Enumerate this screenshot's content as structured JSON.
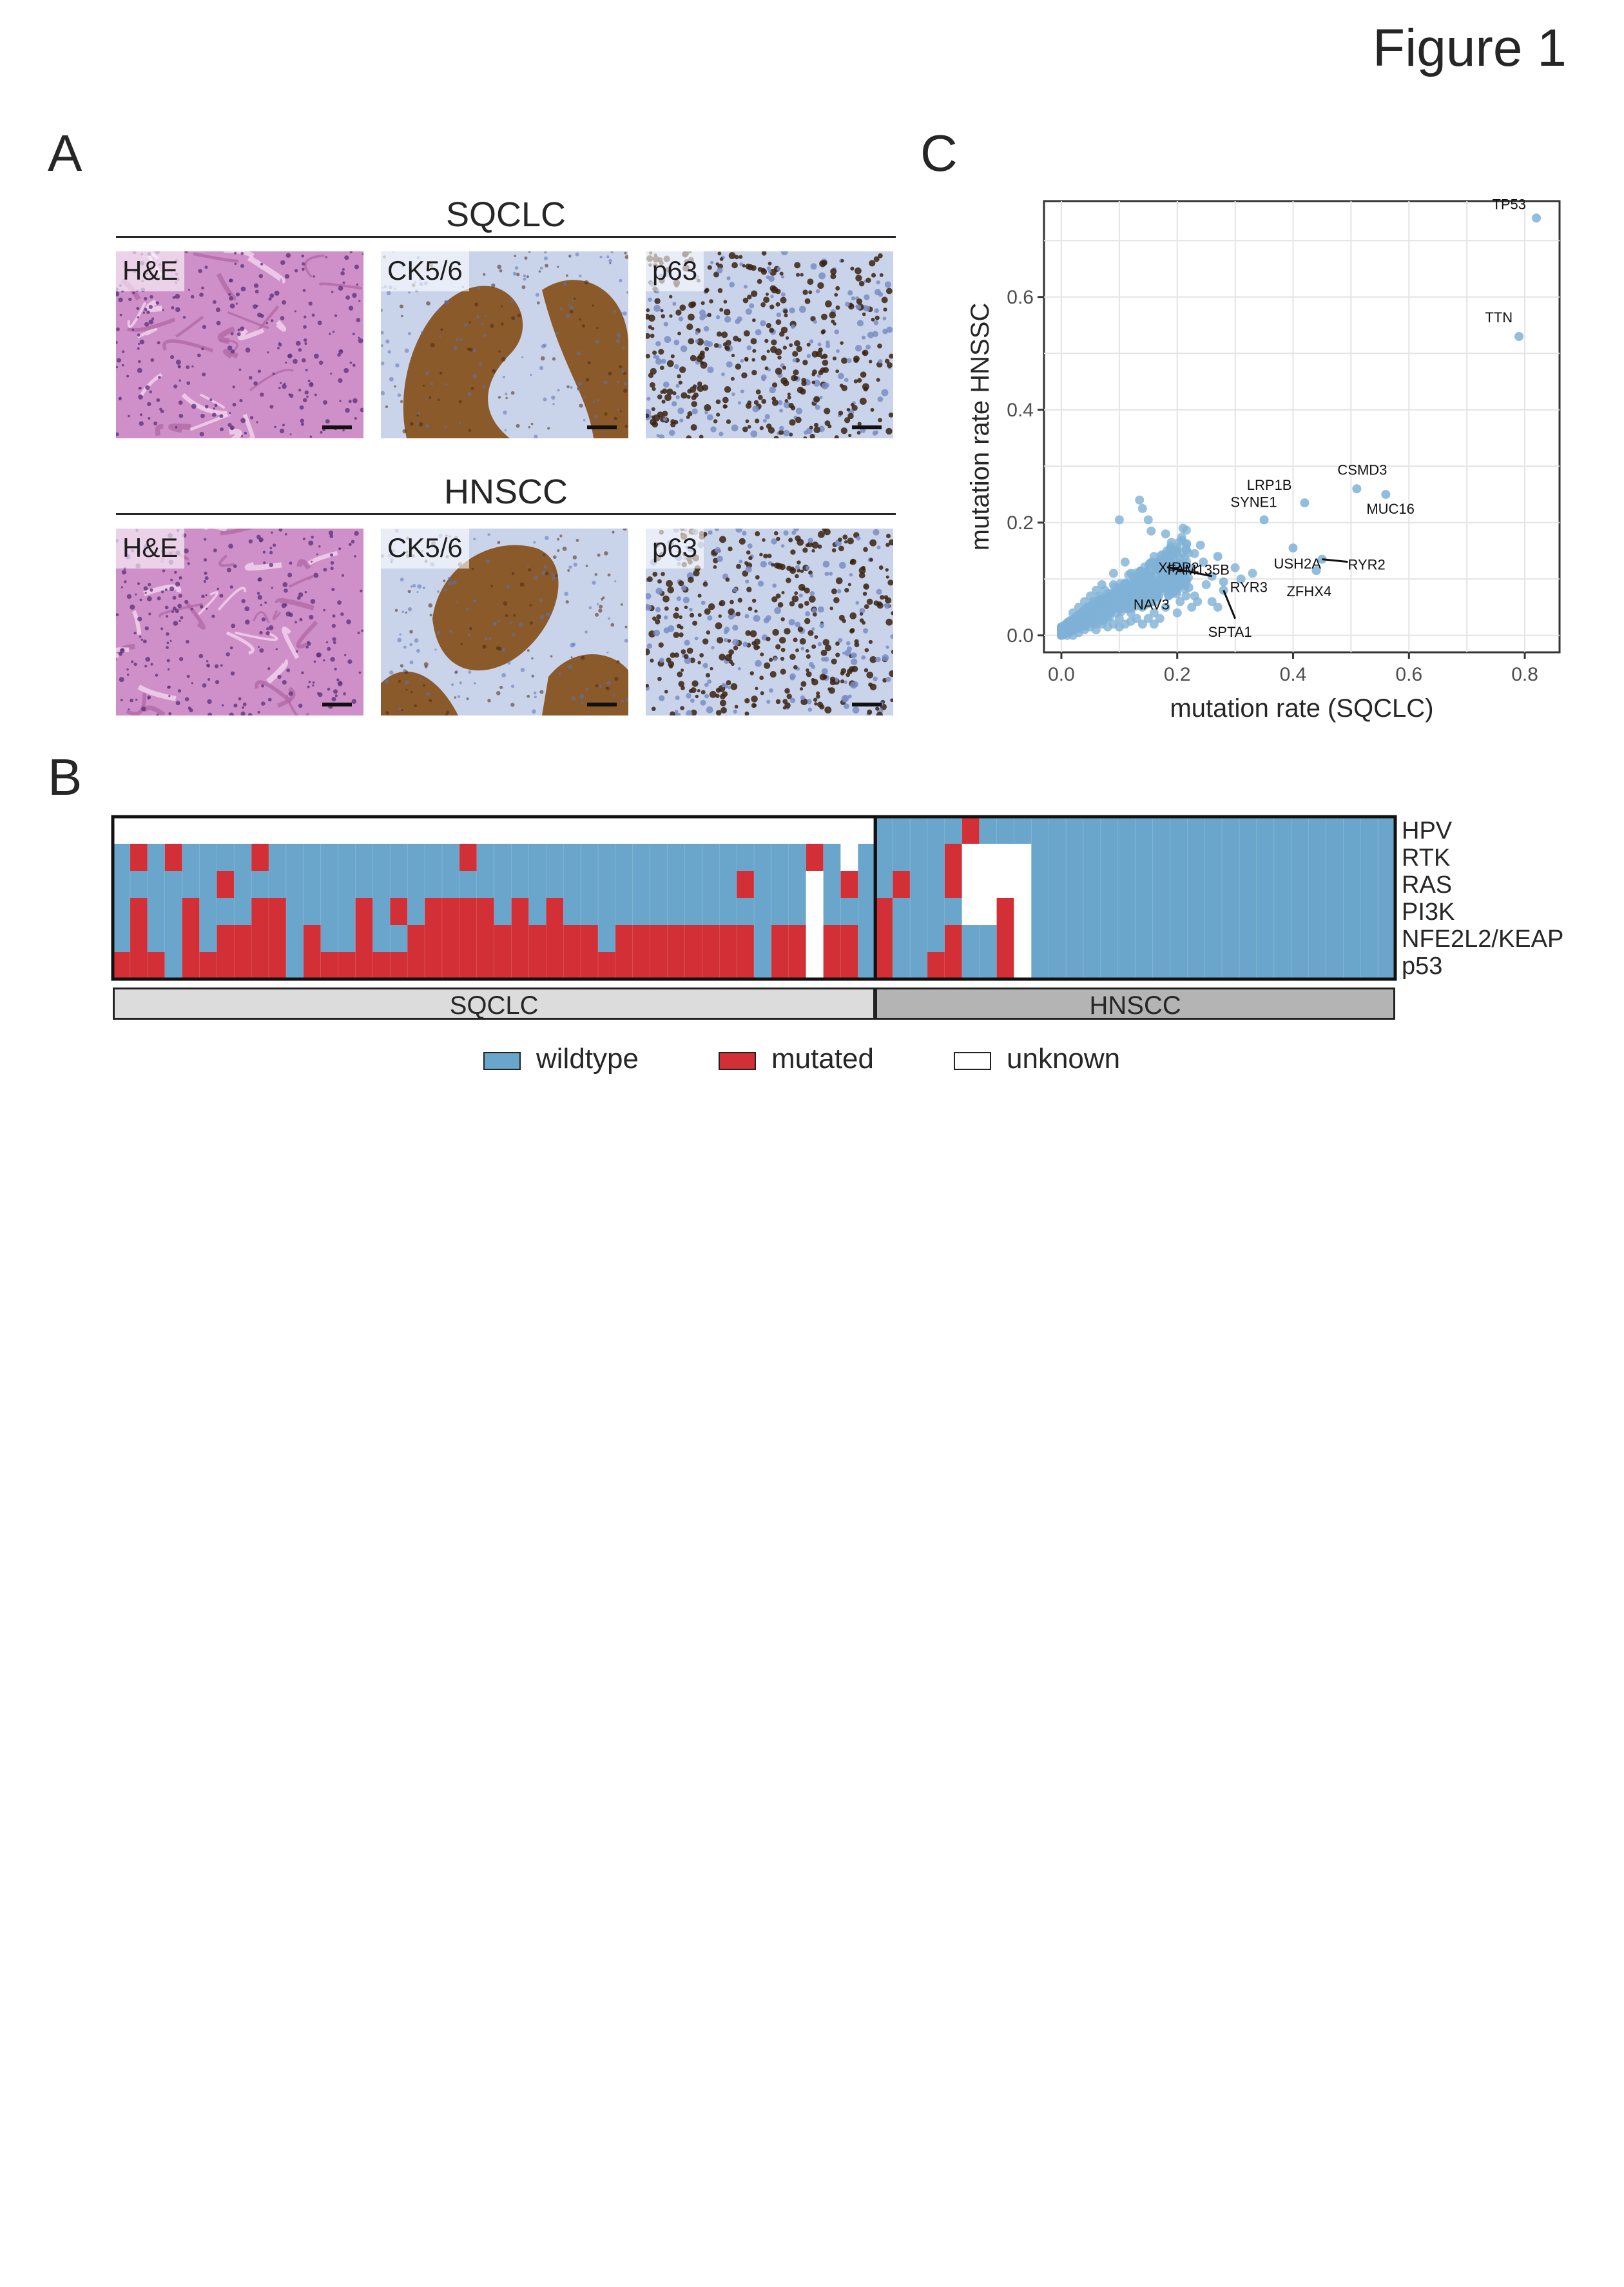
{
  "figure_title": "Figure 1",
  "panel_a": {
    "letter": "A",
    "groups": [
      {
        "title": "SQCLC",
        "tiles": [
          {
            "label": "H&E",
            "stain": "he"
          },
          {
            "label": "CK5/6",
            "stain": "ck"
          },
          {
            "label": "p63",
            "stain": "p63"
          }
        ]
      },
      {
        "title": "HNSCC",
        "tiles": [
          {
            "label": "H&E",
            "stain": "he"
          },
          {
            "label": "CK5/6",
            "stain": "ck"
          },
          {
            "label": "p63",
            "stain": "p63"
          }
        ]
      }
    ],
    "colors": {
      "he": "#cf8fc9",
      "ck": "#8b5a2b",
      "p63": "#3b2211",
      "ihc_background": "#c9d3ea"
    }
  },
  "panel_b": {
    "letter": "B",
    "rows": [
      "HPV",
      "RTK",
      "RAS",
      "PI3K",
      "NFE2L2/KEAP",
      "p53"
    ],
    "groups": [
      {
        "label": "SQCLC",
        "n": 44
      },
      {
        "label": "HNSCC",
        "n": 30
      }
    ],
    "matrix_codes": "0 = wildtype, 1 = mutated, 2 = unknown",
    "matrix": [
      "22222222222222222222222222222222222222222222000001000000000000000000000000",
      "01010000100000000000100000000000000000001020000012222000000000000000000000",
      "00000010000000000000000000000000000010002010010012222000000000000000000000",
      "01001000110000101011110101000000000000002000100002212000000000000000000000",
      "01001011110100100111111111110111111110112110100010012000000000000000000000",
      "11101111110111111111111111111111111110112110100110012000000000000000000000"
    ],
    "legend": [
      {
        "label": "wildtype",
        "color": "#6aa6cb"
      },
      {
        "label": "mutated",
        "color": "#d32f36"
      },
      {
        "label": "unknown",
        "color": "#ffffff"
      }
    ],
    "group_bar_colors": {
      "SQCLC": "#dcdcdc",
      "HNSCC": "#b4b4b4"
    }
  },
  "panel_c": {
    "letter": "C",
    "chart_data": {
      "type": "scatter",
      "xlabel": "mutation rate (SQCLC)",
      "ylabel": "mutation rate HNSSC",
      "xlim": [
        -0.03,
        0.86
      ],
      "ylim": [
        -0.03,
        0.77
      ],
      "xticks": [
        0.0,
        0.2,
        0.4,
        0.6,
        0.8
      ],
      "yticks": [
        0.0,
        0.2,
        0.4,
        0.6
      ],
      "xtick_labels": [
        "0.0",
        "0.2",
        "0.4",
        "0.6",
        "0.8"
      ],
      "ytick_labels": [
        "0.0",
        "0.2",
        "0.4",
        "0.6"
      ],
      "grid": true,
      "point_color": "#7fb2d6",
      "labeled_points": [
        {
          "name": "TP53",
          "x": 0.82,
          "y": 0.74
        },
        {
          "name": "TTN",
          "x": 0.79,
          "y": 0.53
        },
        {
          "name": "CSMD3",
          "x": 0.51,
          "y": 0.26
        },
        {
          "name": "MUC16",
          "x": 0.56,
          "y": 0.25
        },
        {
          "name": "LRP1B",
          "x": 0.42,
          "y": 0.235
        },
        {
          "name": "SYNE1",
          "x": 0.35,
          "y": 0.205
        },
        {
          "name": "USH2A",
          "x": 0.4,
          "y": 0.155
        },
        {
          "name": "RYR2",
          "x": 0.45,
          "y": 0.135
        },
        {
          "name": "ZFHX4",
          "x": 0.44,
          "y": 0.115
        },
        {
          "name": "FAM135B",
          "x": 0.27,
          "y": 0.14
        },
        {
          "name": "XIRP2",
          "x": 0.26,
          "y": 0.105
        },
        {
          "name": "RYR3",
          "x": 0.28,
          "y": 0.095
        },
        {
          "name": "NAV3",
          "x": 0.22,
          "y": 0.085
        },
        {
          "name": "SPTA1",
          "x": 0.28,
          "y": 0.08
        }
      ],
      "other_points": [
        [
          0.1,
          0.205
        ],
        [
          0.135,
          0.24
        ],
        [
          0.14,
          0.225
        ],
        [
          0.15,
          0.205
        ],
        [
          0.155,
          0.185
        ],
        [
          0.18,
          0.18
        ],
        [
          0.19,
          0.165
        ],
        [
          0.21,
          0.19
        ],
        [
          0.23,
          0.145
        ],
        [
          0.24,
          0.16
        ],
        [
          0.245,
          0.13
        ],
        [
          0.22,
          0.12
        ],
        [
          0.2,
          0.13
        ],
        [
          0.17,
          0.12
        ],
        [
          0.16,
          0.14
        ],
        [
          0.3,
          0.12
        ],
        [
          0.31,
          0.1
        ],
        [
          0.33,
          0.11
        ],
        [
          0.25,
          0.09
        ],
        [
          0.23,
          0.07
        ],
        [
          0.19,
          0.095
        ],
        [
          0.15,
          0.1
        ],
        [
          0.13,
          0.085
        ],
        [
          0.12,
          0.11
        ],
        [
          0.11,
          0.07
        ],
        [
          0.09,
          0.09
        ],
        [
          0.08,
          0.06
        ],
        [
          0.07,
          0.05
        ],
        [
          0.06,
          0.04
        ],
        [
          0.05,
          0.03
        ],
        [
          0.04,
          0.02
        ],
        [
          0.03,
          0.015
        ],
        [
          0.02,
          0.01
        ],
        [
          0.01,
          0.01
        ],
        [
          0.015,
          0.02
        ],
        [
          0.025,
          0.03
        ],
        [
          0.035,
          0.04
        ],
        [
          0.045,
          0.05
        ],
        [
          0.055,
          0.06
        ],
        [
          0.065,
          0.07
        ],
        [
          0.075,
          0.08
        ],
        [
          0.085,
          0.05
        ],
        [
          0.095,
          0.04
        ],
        [
          0.105,
          0.06
        ],
        [
          0.115,
          0.05
        ],
        [
          0.125,
          0.06
        ],
        [
          0.135,
          0.07
        ],
        [
          0.145,
          0.08
        ],
        [
          0.155,
          0.06
        ],
        [
          0.165,
          0.07
        ],
        [
          0.175,
          0.09
        ],
        [
          0.185,
          0.07
        ],
        [
          0.195,
          0.08
        ],
        [
          0.205,
          0.06
        ],
        [
          0.215,
          0.07
        ],
        [
          0.225,
          0.05
        ],
        [
          0.235,
          0.06
        ],
        [
          0.26,
          0.06
        ],
        [
          0.27,
          0.05
        ],
        [
          0.06,
          0.02
        ],
        [
          0.08,
          0.03
        ],
        [
          0.1,
          0.03
        ],
        [
          0.12,
          0.04
        ],
        [
          0.14,
          0.05
        ],
        [
          0.16,
          0.04
        ],
        [
          0.18,
          0.05
        ],
        [
          0.2,
          0.04
        ],
        [
          0.03,
          0.05
        ],
        [
          0.05,
          0.07
        ],
        [
          0.07,
          0.09
        ],
        [
          0.09,
          0.11
        ],
        [
          0.11,
          0.13
        ],
        [
          0.02,
          0.04
        ],
        [
          0.04,
          0.06
        ],
        [
          0.06,
          0.08
        ],
        [
          0.0,
          0.0
        ],
        [
          0.005,
          0.005
        ],
        [
          0.01,
          0.0
        ],
        [
          0.0,
          0.01
        ],
        [
          0.02,
          0.0
        ],
        [
          0.03,
          0.005
        ],
        [
          0.04,
          0.01
        ],
        [
          0.05,
          0.015
        ],
        [
          0.06,
          0.01
        ],
        [
          0.07,
          0.02
        ],
        [
          0.08,
          0.015
        ],
        [
          0.09,
          0.02
        ],
        [
          0.1,
          0.015
        ],
        [
          0.11,
          0.02
        ],
        [
          0.12,
          0.025
        ],
        [
          0.13,
          0.03
        ],
        [
          0.14,
          0.02
        ],
        [
          0.15,
          0.03
        ],
        [
          0.16,
          0.02
        ],
        [
          0.17,
          0.03
        ]
      ]
    }
  }
}
